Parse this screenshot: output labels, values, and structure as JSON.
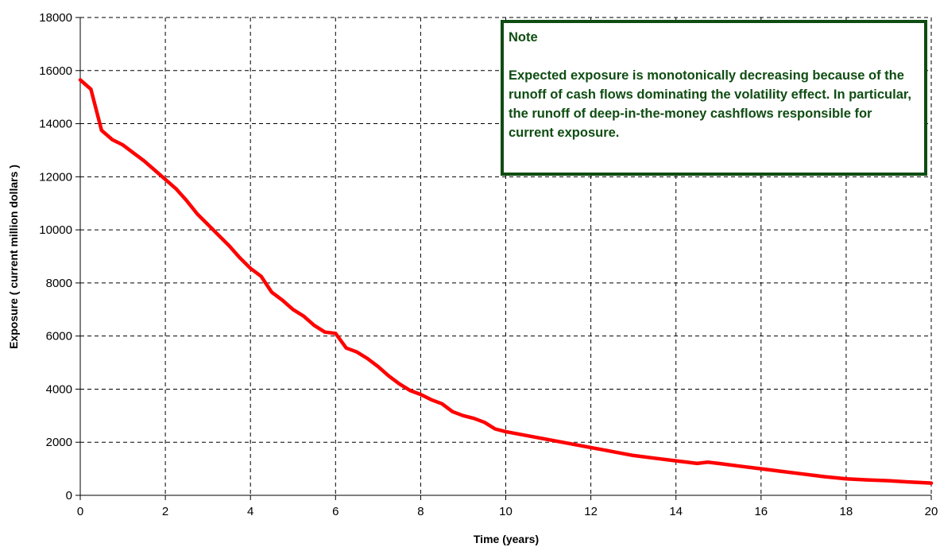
{
  "chart_data": {
    "type": "line",
    "xlabel": "Time (years)",
    "ylabel": "Exposure ( current million dollars )",
    "xlim": [
      0,
      20
    ],
    "ylim": [
      0,
      18000
    ],
    "xticks": [
      0,
      2,
      4,
      6,
      8,
      10,
      12,
      14,
      16,
      18,
      20
    ],
    "yticks": [
      0,
      2000,
      4000,
      6000,
      8000,
      10000,
      12000,
      14000,
      16000,
      18000
    ],
    "grid": true,
    "series": [
      {
        "color": "#ff0000",
        "x": [
          0,
          0.25,
          0.5,
          0.75,
          1,
          1.25,
          1.5,
          1.75,
          2,
          2.25,
          2.5,
          2.75,
          3,
          3.25,
          3.5,
          3.75,
          4,
          4.25,
          4.5,
          4.75,
          5,
          5.25,
          5.5,
          5.75,
          6,
          6.25,
          6.5,
          6.75,
          7,
          7.25,
          7.5,
          7.75,
          8,
          8.25,
          8.5,
          8.75,
          9,
          9.25,
          9.5,
          9.75,
          10,
          10.5,
          11,
          11.5,
          12,
          12.5,
          13,
          13.5,
          14,
          14.5,
          14.75,
          15,
          15.5,
          16,
          16.5,
          17,
          17.5,
          18,
          18.5,
          19,
          19.5,
          20
        ],
        "y": [
          15650,
          15300,
          13750,
          13400,
          13200,
          12900,
          12600,
          12250,
          11900,
          11550,
          11100,
          10600,
          10200,
          9800,
          9400,
          8950,
          8550,
          8250,
          7650,
          7350,
          7000,
          6750,
          6400,
          6150,
          6100,
          5550,
          5400,
          5150,
          4850,
          4500,
          4200,
          3950,
          3800,
          3600,
          3450,
          3150,
          3000,
          2900,
          2750,
          2500,
          2400,
          2250,
          2100,
          1950,
          1800,
          1650,
          1500,
          1400,
          1300,
          1200,
          1250,
          1200,
          1100,
          1000,
          900,
          800,
          700,
          620,
          580,
          550,
          500,
          460
        ]
      }
    ]
  },
  "note": {
    "title": "Note",
    "body": "Expected exposure is monotonically decreasing because of the runoff of cash flows dominating the volatility effect. In particular, the runoff of deep-in-the-money cashflows responsible for current exposure."
  },
  "colors": {
    "line": "#ff0000",
    "note_border": "#0f4d12",
    "note_text": "#0f4d12",
    "grid": "#000000"
  }
}
